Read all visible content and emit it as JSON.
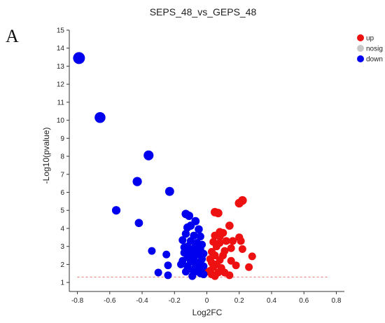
{
  "panel_label": "A",
  "chart_data": {
    "type": "scatter",
    "title": "SEPS_48_vs_GEPS_48",
    "xlabel": "Log2FC",
    "ylabel": "-Log10(pvalue)",
    "xlim": [
      -0.85,
      0.85
    ],
    "ylim": [
      0.5,
      15
    ],
    "xticks": [
      -0.8,
      -0.6,
      -0.4,
      -0.2,
      0,
      0.2,
      0.4,
      0.6,
      0.8
    ],
    "yticks": [
      1,
      2,
      3,
      4,
      5,
      6,
      7,
      8,
      9,
      10,
      11,
      12,
      13,
      14,
      15
    ],
    "xtick_labels": [
      "-0.8",
      "-0.6",
      "-0.4",
      "-0.2",
      "0",
      "0.2",
      "0.4",
      "0.6",
      "0.8"
    ],
    "ytick_labels": [
      "1",
      "2",
      "3",
      "4",
      "5",
      "6",
      "7",
      "8",
      "9",
      "10",
      "11",
      "12",
      "13",
      "14",
      "15"
    ],
    "threshold_y": 1.3,
    "threshold_x_range": [
      -0.8,
      0.75
    ],
    "threshold_color": "#e8776f",
    "legend_position": "top-right",
    "grid": false,
    "series": [
      {
        "name": "up",
        "color": "#ee1111",
        "points": [
          [
            0.22,
            5.55
          ],
          [
            0.2,
            5.4
          ],
          [
            0.05,
            4.9
          ],
          [
            0.07,
            4.85
          ],
          [
            0.14,
            4.15
          ],
          [
            0.08,
            3.8
          ],
          [
            0.1,
            3.75
          ],
          [
            0.05,
            3.6
          ],
          [
            0.08,
            3.55
          ],
          [
            0.2,
            3.5
          ],
          [
            0.12,
            3.3
          ],
          [
            0.04,
            3.25
          ],
          [
            0.16,
            3.3
          ],
          [
            0.08,
            3.2
          ],
          [
            0.21,
            3.3
          ],
          [
            0.06,
            3.0
          ],
          [
            0.15,
            2.9
          ],
          [
            0.22,
            2.85
          ],
          [
            0.11,
            2.75
          ],
          [
            0.03,
            2.7
          ],
          [
            0.05,
            2.5
          ],
          [
            0.1,
            2.5
          ],
          [
            0.28,
            2.45
          ],
          [
            0.02,
            2.3
          ],
          [
            0.08,
            2.25
          ],
          [
            0.15,
            2.2
          ],
          [
            0.03,
            2.1
          ],
          [
            0.06,
            2.0
          ],
          [
            0.18,
            1.95
          ],
          [
            0.26,
            1.85
          ],
          [
            0.04,
            1.85
          ],
          [
            0.09,
            1.8
          ],
          [
            0.02,
            1.65
          ],
          [
            0.07,
            1.55
          ],
          [
            0.11,
            1.55
          ],
          [
            0.03,
            1.45
          ],
          [
            0.14,
            1.4
          ],
          [
            0.05,
            1.35
          ],
          [
            0.01,
            1.6
          ],
          [
            0.04,
            2.55
          ]
        ]
      },
      {
        "name": "nosig",
        "color": "#c8c8c8",
        "points": []
      },
      {
        "name": "down",
        "color": "#0000ee",
        "points": [
          [
            -0.79,
            13.45
          ],
          [
            -0.66,
            10.15
          ],
          [
            -0.36,
            8.05
          ],
          [
            -0.43,
            6.6
          ],
          [
            -0.23,
            6.05
          ],
          [
            -0.56,
            5.0
          ],
          [
            -0.42,
            4.3
          ],
          [
            -0.13,
            4.8
          ],
          [
            -0.11,
            4.7
          ],
          [
            -0.07,
            4.4
          ],
          [
            -0.1,
            4.15
          ],
          [
            -0.12,
            4.05
          ],
          [
            -0.05,
            3.95
          ],
          [
            -0.13,
            3.7
          ],
          [
            -0.08,
            3.6
          ],
          [
            -0.04,
            3.55
          ],
          [
            -0.15,
            3.35
          ],
          [
            -0.1,
            3.3
          ],
          [
            -0.06,
            3.2
          ],
          [
            -0.03,
            3.1
          ],
          [
            -0.12,
            3.0
          ],
          [
            -0.08,
            2.9
          ],
          [
            -0.04,
            2.85
          ],
          [
            -0.34,
            2.75
          ],
          [
            -0.14,
            2.65
          ],
          [
            -0.1,
            2.6
          ],
          [
            -0.06,
            2.55
          ],
          [
            -0.25,
            2.55
          ],
          [
            -0.12,
            2.4
          ],
          [
            -0.08,
            2.35
          ],
          [
            -0.03,
            2.3
          ],
          [
            -0.15,
            2.2
          ],
          [
            -0.1,
            2.15
          ],
          [
            -0.05,
            2.1
          ],
          [
            -0.16,
            2.0
          ],
          [
            -0.24,
            1.95
          ],
          [
            -0.12,
            1.9
          ],
          [
            -0.07,
            1.85
          ],
          [
            -0.03,
            1.8
          ],
          [
            -0.11,
            1.75
          ],
          [
            -0.05,
            1.7
          ],
          [
            -0.13,
            1.6
          ],
          [
            -0.08,
            1.55
          ],
          [
            -0.04,
            1.5
          ],
          [
            -0.3,
            1.55
          ],
          [
            -0.24,
            1.4
          ],
          [
            -0.02,
            1.45
          ],
          [
            -0.09,
            1.35
          ],
          [
            -0.06,
            2.0
          ],
          [
            -0.02,
            2.6
          ],
          [
            -0.07,
            3.0
          ],
          [
            -0.1,
            2.8
          ],
          [
            -0.14,
            2.95
          ],
          [
            -0.05,
            1.6
          ],
          [
            -0.02,
            1.9
          ]
        ]
      }
    ]
  }
}
